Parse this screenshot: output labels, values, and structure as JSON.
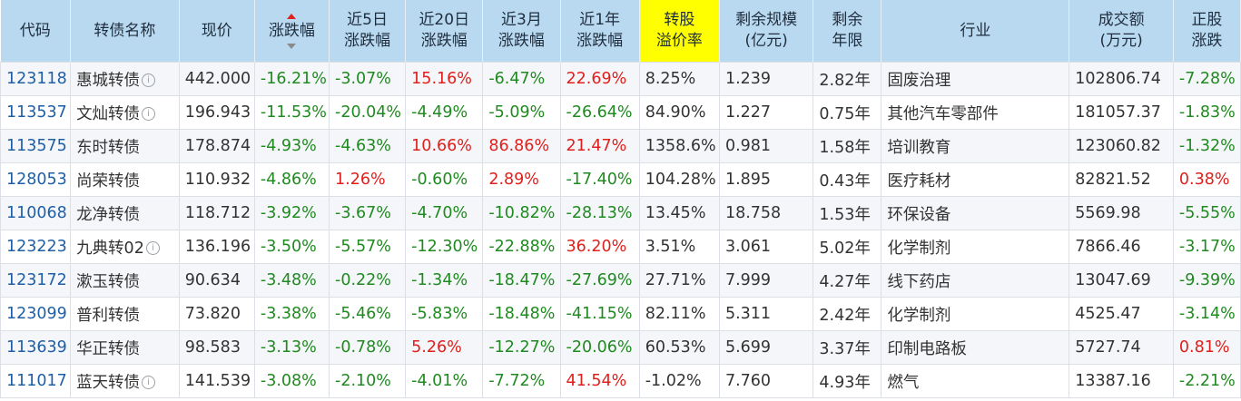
{
  "headers": {
    "code": "代码",
    "name": "转债名称",
    "price": "现价",
    "change": "涨跌幅",
    "chg5d_l1": "近5日",
    "chg5d_l2": "涨跌幅",
    "chg20d_l1": "近20日",
    "chg20d_l2": "涨跌幅",
    "chg3m_l1": "近3月",
    "chg3m_l2": "涨跌幅",
    "chg1y_l1": "近1年",
    "chg1y_l2": "涨跌幅",
    "premium_l1": "转股",
    "premium_l2": "溢价率",
    "scale_l1": "剩余规模",
    "scale_l2": "(亿元)",
    "term_l1": "剩余",
    "term_l2": "年限",
    "industry": "行业",
    "volume_l1": "成交额",
    "volume_l2": "(万元)",
    "stock_l1": "正股",
    "stock_l2": "涨跌"
  },
  "colors": {
    "positive": "#e0201c",
    "negative": "#1f8a1f",
    "header_bg": "#b9d9f0",
    "highlight": "#ffff00",
    "code": "#1f5fa6"
  },
  "rows": [
    {
      "code": "123118",
      "name": "惠城转债",
      "info": true,
      "price": "442.000",
      "change": "-16.21%",
      "chg5d": "-3.07%",
      "chg20d": "15.16%",
      "chg3m": "-6.47%",
      "chg1y": "22.69%",
      "premium": "8.25%",
      "scale": "1.239",
      "term": "2.82年",
      "industry": "固废治理",
      "volume": "102806.74",
      "stock": "-7.28%"
    },
    {
      "code": "113537",
      "name": "文灿转债",
      "info": true,
      "price": "196.943",
      "change": "-11.53%",
      "chg5d": "-20.04%",
      "chg20d": "-4.49%",
      "chg3m": "-5.09%",
      "chg1y": "-26.64%",
      "premium": "84.90%",
      "scale": "1.227",
      "term": "0.75年",
      "industry": "其他汽车零部件",
      "volume": "181057.37",
      "stock": "-1.83%"
    },
    {
      "code": "113575",
      "name": "东时转债",
      "info": false,
      "price": "178.874",
      "change": "-4.93%",
      "chg5d": "-4.63%",
      "chg20d": "10.66%",
      "chg3m": "86.86%",
      "chg1y": "21.47%",
      "premium": "1358.6%",
      "scale": "0.981",
      "term": "1.58年",
      "industry": "培训教育",
      "volume": "123060.82",
      "stock": "-1.32%"
    },
    {
      "code": "128053",
      "name": "尚荣转债",
      "info": false,
      "price": "110.932",
      "change": "-4.86%",
      "chg5d": "1.26%",
      "chg20d": "-0.60%",
      "chg3m": "2.89%",
      "chg1y": "-17.40%",
      "premium": "104.28%",
      "scale": "1.895",
      "term": "0.43年",
      "industry": "医疗耗材",
      "volume": "82821.52",
      "stock": "0.38%"
    },
    {
      "code": "110068",
      "name": "龙净转债",
      "info": false,
      "price": "118.712",
      "change": "-3.92%",
      "chg5d": "-3.67%",
      "chg20d": "-4.70%",
      "chg3m": "-10.82%",
      "chg1y": "-28.13%",
      "premium": "13.45%",
      "scale": "18.758",
      "term": "1.53年",
      "industry": "环保设备",
      "volume": "5569.98",
      "stock": "-5.55%"
    },
    {
      "code": "123223",
      "name": "九典转02",
      "info": true,
      "price": "136.196",
      "change": "-3.50%",
      "chg5d": "-5.57%",
      "chg20d": "-12.30%",
      "chg3m": "-22.88%",
      "chg1y": "36.20%",
      "premium": "3.51%",
      "scale": "3.061",
      "term": "5.02年",
      "industry": "化学制剂",
      "volume": "7866.46",
      "stock": "-3.17%"
    },
    {
      "code": "123172",
      "name": "漱玉转债",
      "info": false,
      "price": "90.634",
      "change": "-3.48%",
      "chg5d": "-0.22%",
      "chg20d": "-1.34%",
      "chg3m": "-18.47%",
      "chg1y": "-27.69%",
      "premium": "27.71%",
      "scale": "7.999",
      "term": "4.27年",
      "industry": "线下药店",
      "volume": "13047.69",
      "stock": "-9.39%"
    },
    {
      "code": "123099",
      "name": "普利转债",
      "info": false,
      "price": "73.820",
      "change": "-3.38%",
      "chg5d": "-5.46%",
      "chg20d": "-5.83%",
      "chg3m": "-18.48%",
      "chg1y": "-41.15%",
      "premium": "82.11%",
      "scale": "5.311",
      "term": "2.42年",
      "industry": "化学制剂",
      "volume": "4525.47",
      "stock": "-3.14%"
    },
    {
      "code": "113639",
      "name": "华正转债",
      "info": false,
      "price": "98.583",
      "change": "-3.13%",
      "chg5d": "-0.78%",
      "chg20d": "5.26%",
      "chg3m": "-12.27%",
      "chg1y": "-20.06%",
      "premium": "60.53%",
      "scale": "5.699",
      "term": "3.37年",
      "industry": "印制电路板",
      "volume": "5727.74",
      "stock": "0.81%"
    },
    {
      "code": "111017",
      "name": "蓝天转债",
      "info": true,
      "price": "141.539",
      "change": "-3.08%",
      "chg5d": "-2.10%",
      "chg20d": "-4.01%",
      "chg3m": "-7.72%",
      "chg1y": "41.54%",
      "premium": "-1.02%",
      "scale": "7.760",
      "term": "4.93年",
      "industry": "燃气",
      "volume": "13387.16",
      "stock": "-2.21%"
    }
  ]
}
